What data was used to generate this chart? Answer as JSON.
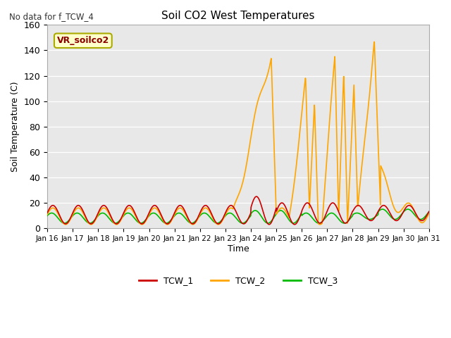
{
  "title": "Soil CO2 West Temperatures",
  "no_data_text": "No data for f_TCW_4",
  "annotation_text": "VR_soilco2",
  "ylabel": "Soil Temperature (C)",
  "xlabel": "Time",
  "ylim": [
    0,
    160
  ],
  "background_color": "#e8e8e8",
  "xtick_labels": [
    "Jan 16",
    "Jan 17",
    "Jan 18",
    "Jan 19",
    "Jan 20",
    "Jan 21",
    "Jan 22",
    "Jan 23",
    "Jan 24",
    "Jan 25",
    "Jan 26",
    "Jan 27",
    "Jan 28",
    "Jan 29",
    "Jan 30",
    "Jan 31"
  ],
  "ytick_values": [
    0,
    20,
    40,
    60,
    80,
    100,
    120,
    140,
    160
  ],
  "line_colors": {
    "TCW_1": "#cc0000",
    "TCW_2": "#ffa500",
    "TCW_3": "#00bb00"
  },
  "line_width": 1.2,
  "figsize": [
    6.4,
    4.8
  ],
  "dpi": 100
}
